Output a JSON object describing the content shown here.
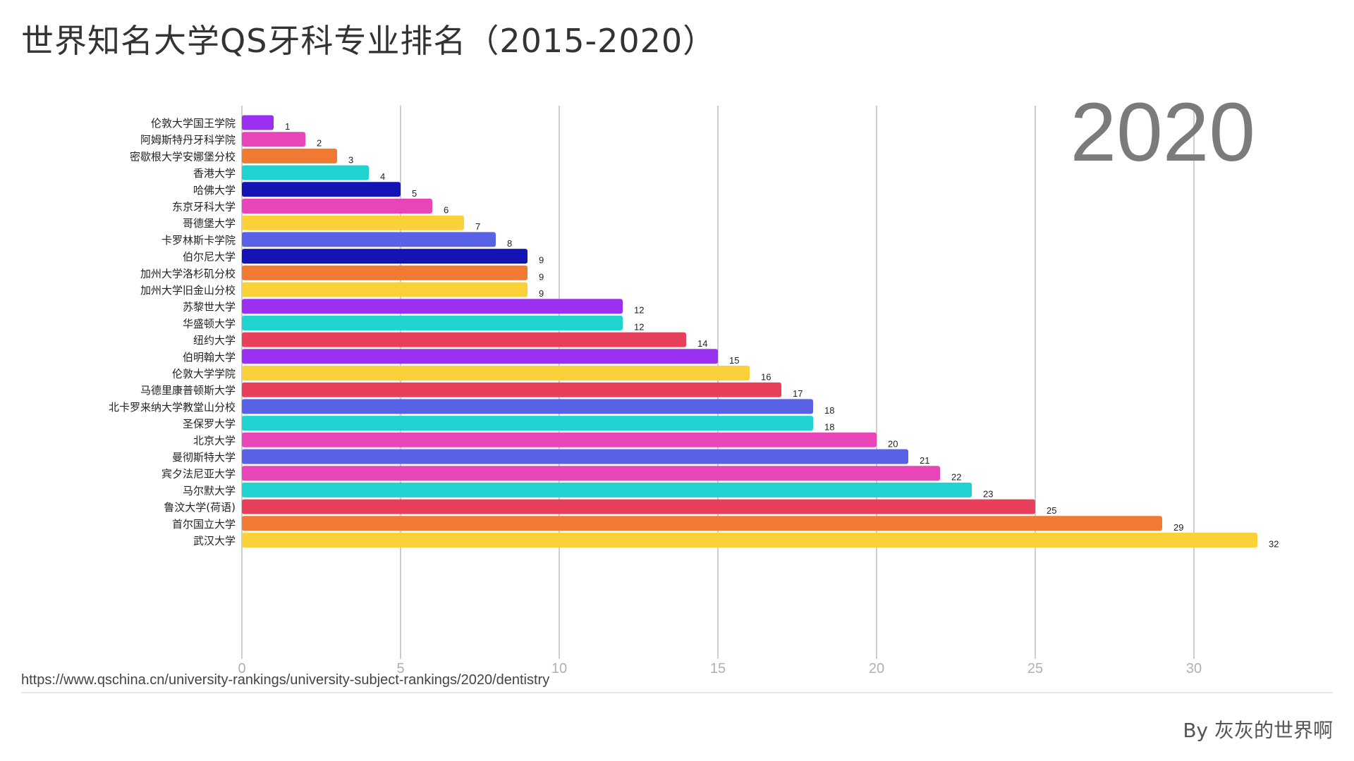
{
  "page": {
    "title": "世界知名大学QS牙科专业排名（2015-2020）",
    "source": "https://www.qschina.cn/university-rankings/university-subject-rankings/2020/dentistry",
    "credit": "By 灰灰的世界啊"
  },
  "chart_data": {
    "type": "bar",
    "orientation": "horizontal",
    "year_label": "2020",
    "categories": [
      "伦敦大学国王学院",
      "阿姆斯特丹牙科学院",
      "密歇根大学安娜堡分校",
      "香港大学",
      "哈佛大学",
      "东京牙科大学",
      "哥德堡大学",
      "卡罗林斯卡学院",
      "伯尔尼大学",
      "加州大学洛杉矶分校",
      "加州大学旧金山分校",
      "苏黎世大学",
      "华盛顿大学",
      "纽约大学",
      "伯明翰大学",
      "伦敦大学学院",
      "马德里康普顿斯大学",
      "北卡罗来纳大学教堂山分校",
      "圣保罗大学",
      "北京大学",
      "曼彻斯特大学",
      "宾夕法尼亚大学",
      "马尔默大学",
      "鲁汶大学(荷语)",
      "首尔国立大学",
      "武汉大学"
    ],
    "values": [
      1,
      2,
      3,
      4,
      5,
      6,
      7,
      8,
      9,
      9,
      9,
      12,
      12,
      14,
      15,
      16,
      17,
      18,
      18,
      20,
      21,
      22,
      23,
      25,
      29,
      32
    ],
    "colors": [
      "#9b30f0",
      "#e845b8",
      "#f07a32",
      "#1fd3d0",
      "#1414b4",
      "#e845b8",
      "#fbd13a",
      "#5961e6",
      "#1414b4",
      "#f07a32",
      "#fbd13a",
      "#9b30f0",
      "#1fd3d0",
      "#e8405a",
      "#9b30f0",
      "#fbd13a",
      "#e8405a",
      "#5961e6",
      "#1fd3d0",
      "#e845b8",
      "#5961e6",
      "#e845b8",
      "#1fd3d0",
      "#e8405a",
      "#f07a32",
      "#fbd13a"
    ],
    "xlim": [
      0,
      32
    ],
    "xticks": [
      0,
      5,
      10,
      15,
      20,
      25,
      30
    ],
    "grid": true,
    "title": "",
    "xlabel": "",
    "ylabel": ""
  }
}
